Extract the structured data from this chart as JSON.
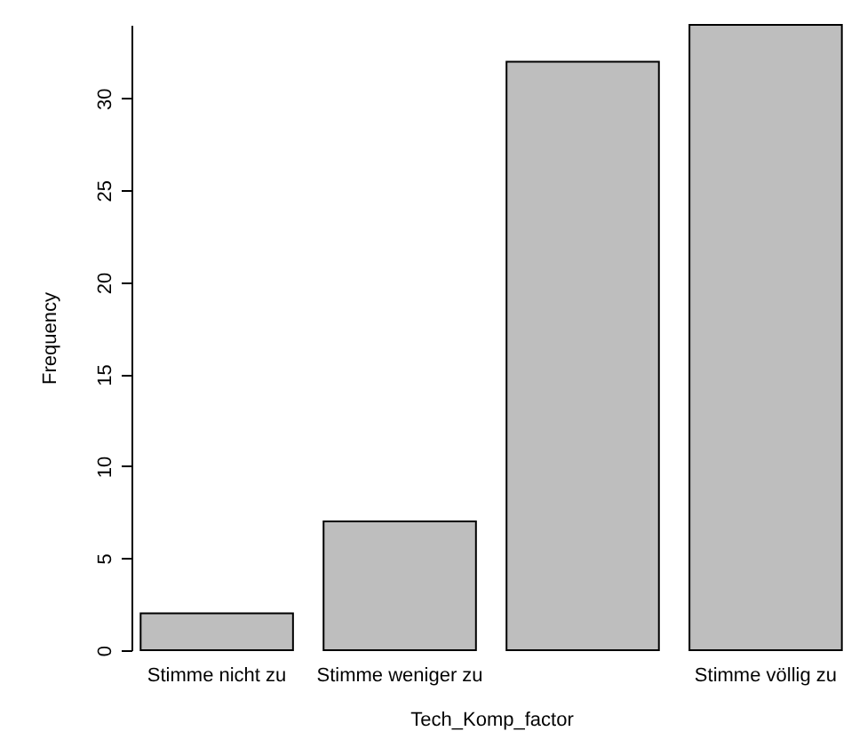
{
  "chart_data": {
    "type": "bar",
    "xlabel": "Tech_Komp_factor",
    "ylabel": "Frequency",
    "categories": [
      "Stimme nicht zu",
      "Stimme weniger zu",
      null,
      "Stimme völlig zu"
    ],
    "values": [
      2,
      7,
      32,
      34
    ],
    "color": "#bebebe",
    "ylim": [
      0,
      34
    ],
    "yticks": [
      0,
      5,
      10,
      15,
      20,
      25,
      30
    ],
    "grid": false
  }
}
